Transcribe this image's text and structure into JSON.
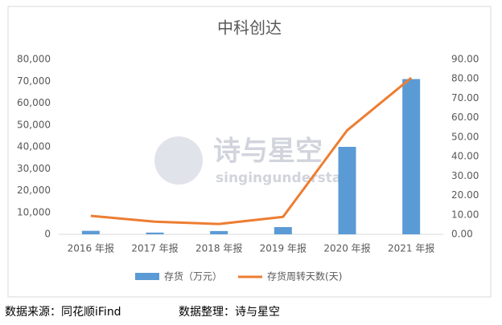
{
  "chart_data": {
    "type": "bar",
    "title": "中科创达",
    "categories": [
      "2016 年报",
      "2017 年报",
      "2018 年报",
      "2019 年报",
      "2020 年报",
      "2021 年报"
    ],
    "series": [
      {
        "name": "存货（万元）",
        "type": "bar",
        "color": "#5b9bd5",
        "values": [
          1600,
          800,
          1500,
          3300,
          40000,
          71000
        ]
      },
      {
        "name": "存货周转天数(天)",
        "type": "line",
        "axis": "y2",
        "color": "#ed7d31",
        "values": [
          9.5,
          6.5,
          5.3,
          9,
          53.5,
          80.5
        ]
      }
    ],
    "ylim": [
      0,
      80000
    ],
    "yticks": [
      0,
      {
        "value": 10000,
        "label": "10,000"
      },
      {
        "value": 20000,
        "label": "20,000"
      },
      {
        "value": 30000,
        "label": "30,000"
      },
      {
        "value": 40000,
        "label": "40,000"
      },
      {
        "value": 50000,
        "label": "50,000"
      },
      {
        "value": 60000,
        "label": "60,000"
      },
      {
        "value": 70000,
        "label": "70,000"
      },
      {
        "value": 80000,
        "label": "80,000"
      }
    ],
    "y2lim": [
      0,
      90
    ],
    "y2ticks": [
      {
        "value": 0,
        "label": "0.00"
      },
      {
        "value": 10,
        "label": "10.00"
      },
      {
        "value": 20,
        "label": "20.00"
      },
      {
        "value": 30,
        "label": "30.00"
      },
      {
        "value": 40,
        "label": "40.00"
      },
      {
        "value": 50,
        "label": "50.00"
      },
      {
        "value": 60,
        "label": "60.00"
      },
      {
        "value": 70,
        "label": "70.00"
      },
      {
        "value": 80,
        "label": "80.00"
      },
      {
        "value": 90,
        "label": "90.00"
      }
    ],
    "grid": false,
    "legend": "bottom",
    "watermark": {
      "title": "诗与星空",
      "subtitle": "singingunderstars"
    },
    "source": "数据来源：同花顺iFind",
    "compiled_by": "数据整理：诗与星空"
  }
}
